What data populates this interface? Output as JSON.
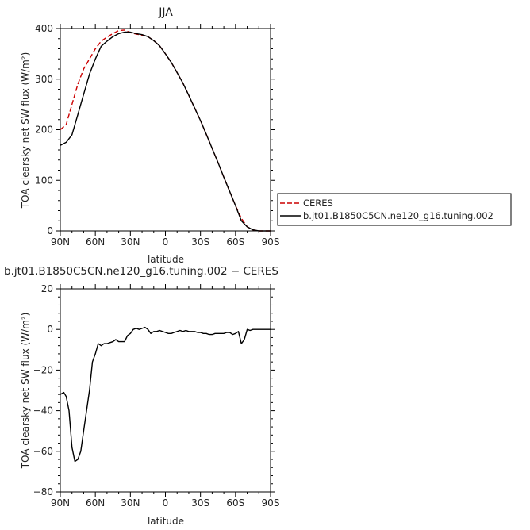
{
  "chart_data": [
    {
      "type": "line",
      "title": "JJA",
      "xlabel": "latitude",
      "ylabel": "TOA clearsky net SW flux (W/m²)",
      "xlim": [
        90,
        -90
      ],
      "ylim": [
        0,
        400
      ],
      "x_ticks": [
        90,
        60,
        30,
        0,
        -30,
        -60,
        -90
      ],
      "x_tick_labels": [
        "90N",
        "60N",
        "30N",
        "0",
        "30S",
        "60S",
        "90S"
      ],
      "y_ticks": [
        0,
        100,
        200,
        300,
        400
      ],
      "y_tick_labels": [
        "0",
        "100",
        "200",
        "300",
        "400"
      ],
      "grid": false,
      "legend_position": "right",
      "series": [
        {
          "name": "CERES",
          "color": "#cc0000",
          "dash": "dashed",
          "x": [
            90,
            85,
            80,
            75,
            70,
            65,
            60,
            55,
            50,
            45,
            40,
            35,
            30,
            25,
            20,
            15,
            10,
            5,
            0,
            -5,
            -10,
            -15,
            -20,
            -25,
            -30,
            -35,
            -40,
            -45,
            -50,
            -55,
            -60,
            -65,
            -70,
            -75,
            -80,
            -85,
            -90
          ],
          "y": [
            200,
            210,
            250,
            290,
            320,
            340,
            360,
            375,
            383,
            390,
            396,
            397,
            392,
            389,
            387,
            384,
            376,
            366,
            350,
            333,
            313,
            292,
            268,
            243,
            218,
            191,
            163,
            135,
            106,
            78,
            50,
            25,
            8,
            2,
            0,
            0,
            0
          ]
        },
        {
          "name": "b.jt01.B1850C5CN.ne120_g16.tuning.002",
          "color": "#000000",
          "dash": "solid",
          "x": [
            90,
            85,
            80,
            75,
            70,
            65,
            60,
            55,
            50,
            45,
            40,
            35,
            30,
            25,
            20,
            15,
            10,
            5,
            0,
            -5,
            -10,
            -15,
            -20,
            -25,
            -30,
            -35,
            -40,
            -45,
            -50,
            -55,
            -60,
            -65,
            -70,
            -75,
            -80,
            -85,
            -90
          ],
          "y": [
            169,
            175,
            190,
            230,
            270,
            310,
            340,
            365,
            375,
            384,
            390,
            393,
            393,
            390,
            388,
            384,
            376,
            366,
            350,
            333,
            313,
            292,
            268,
            243,
            218,
            191,
            163,
            135,
            106,
            78,
            50,
            20,
            8,
            2,
            0,
            0,
            0
          ]
        }
      ]
    },
    {
      "type": "line",
      "title": "b.jt01.B1850C5CN.ne120_g16.tuning.002 − CERES",
      "xlabel": "latitude",
      "ylabel": "TOA clearsky net SW flux (W/m²)",
      "xlim": [
        90,
        -90
      ],
      "ylim": [
        -80,
        20
      ],
      "x_ticks": [
        90,
        60,
        30,
        0,
        -30,
        -60,
        -90
      ],
      "x_tick_labels": [
        "90N",
        "60N",
        "30N",
        "0",
        "30S",
        "60S",
        "90S"
      ],
      "y_ticks": [
        -80,
        -60,
        -40,
        -20,
        0,
        20
      ],
      "y_tick_labels": [
        "−80",
        "−60",
        "−40",
        "−20",
        "0",
        "20"
      ],
      "grid": false,
      "series": [
        {
          "name": "",
          "color": "#000000",
          "dash": "solid",
          "x": [
            90,
            87,
            85,
            82.5,
            80,
            77.5,
            75,
            72.5,
            70,
            67.5,
            65,
            62.5,
            60,
            57.5,
            55,
            52.5,
            50,
            47.5,
            45,
            42.5,
            40,
            37.5,
            35,
            32.5,
            30,
            27.5,
            25,
            22.5,
            20,
            17.5,
            15,
            12.5,
            10,
            7.5,
            5,
            2.5,
            0,
            -2.5,
            -5,
            -7.5,
            -10,
            -12.5,
            -15,
            -17.5,
            -20,
            -22.5,
            -25,
            -27.5,
            -30,
            -32.5,
            -35,
            -37.5,
            -40,
            -42.5,
            -45,
            -47.5,
            -50,
            -52.5,
            -55,
            -57.5,
            -60,
            -62.5,
            -65,
            -67.5,
            -70,
            -72.5,
            -75,
            -80,
            -85,
            -90
          ],
          "y": [
            -32,
            -31,
            -33,
            -40,
            -58,
            -65,
            -64,
            -60,
            -50,
            -40,
            -30,
            -16,
            -12,
            -7,
            -8,
            -7,
            -7,
            -6.5,
            -6,
            -5,
            -6,
            -6,
            -6,
            -3,
            -2,
            0,
            0.5,
            0,
            0.5,
            1,
            0,
            -2,
            -1,
            -1,
            -0.5,
            -1,
            -1.5,
            -2,
            -2,
            -1.5,
            -1,
            -0.5,
            -1,
            -0.5,
            -1,
            -1,
            -1,
            -1.5,
            -1.5,
            -2,
            -2,
            -2.5,
            -2.5,
            -2,
            -2,
            -2,
            -2,
            -1.5,
            -1.5,
            -2.5,
            -2,
            -1,
            -7,
            -5,
            0,
            -0.5,
            0,
            0,
            0,
            0
          ]
        }
      ]
    }
  ]
}
